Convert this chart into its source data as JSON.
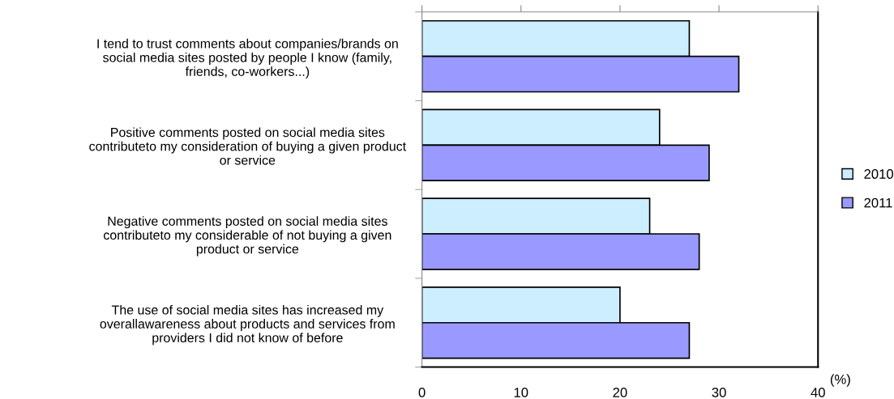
{
  "chart_data": {
    "type": "bar",
    "orientation": "horizontal",
    "categories": [
      "I tend to trust comments about companies/brands on\nsocial media sites posted by people I know (family,\nfriends, co-workers...)",
      "Positive comments posted on social media sites\ncontributeto my consideration of buying a given product\nor service",
      "Negative comments posted on social media sites\ncontributeto my considerable of not buying a given\nproduct or service",
      "The use of social media sites has increased my\noverallawareness about products and services from\nproviders I did not know of before"
    ],
    "series": [
      {
        "name": "2010",
        "color": "#cdeeff",
        "values": [
          27,
          24,
          23,
          20
        ]
      },
      {
        "name": "2011",
        "color": "#9999ff",
        "values": [
          32,
          29,
          28,
          27
        ]
      }
    ],
    "xlim": [
      0,
      40
    ],
    "xticks": [
      0,
      10,
      20,
      30,
      40
    ],
    "annotations": [
      "(%)"
    ],
    "legend": "right",
    "grid": false
  }
}
